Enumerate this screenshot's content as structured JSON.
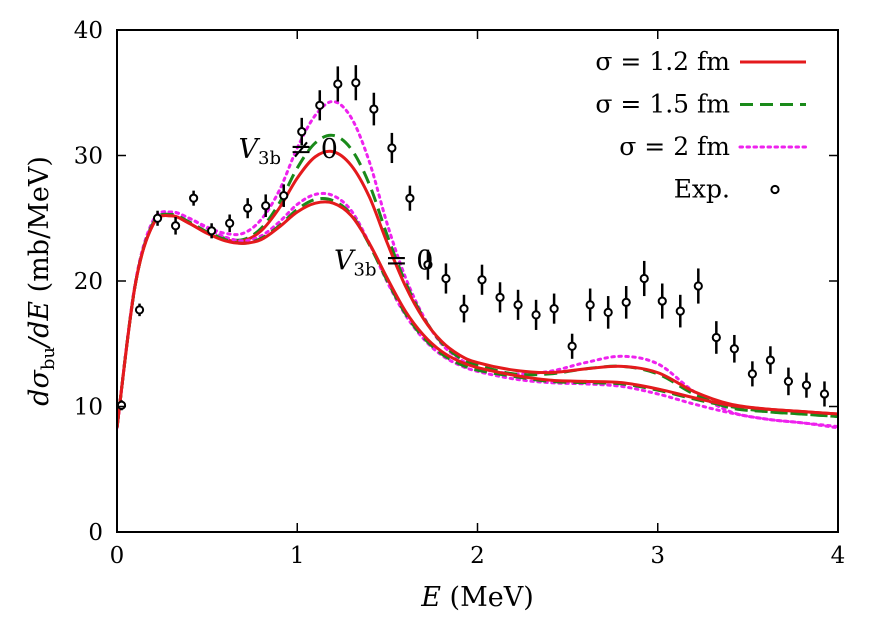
{
  "chart_data": {
    "type": "line",
    "xlabel": "E (MeV)",
    "ylabel": "dσbu/dE (mb/MeV)",
    "xlim": [
      0,
      4
    ],
    "ylim": [
      0,
      40
    ],
    "xticks": [
      "0",
      "1",
      "2",
      "3",
      "4"
    ],
    "yticks": [
      "0",
      "10",
      "20",
      "30",
      "40"
    ],
    "grid": false,
    "legend_position": "top-right",
    "legend": [
      {
        "label": "σ = 1.2 fm",
        "color": "#e41a1c",
        "style": "solid"
      },
      {
        "label": "σ = 1.5 fm",
        "color": "#1a8a1a",
        "style": "dashed"
      },
      {
        "label": "σ = 2 fm",
        "color": "#ee22ee",
        "style": "dotted"
      },
      {
        "label": "Exp.",
        "color": "#000000",
        "style": "points"
      }
    ],
    "annotations": [
      {
        "text": "V3b ≠ 0",
        "main": "V",
        "sub": "3b",
        "rel": " ≠ 0",
        "at": [
          0.95,
          29.8
        ]
      },
      {
        "text": "V3b = 0",
        "main": "V",
        "sub": "3b",
        "rel": " = 0",
        "at": [
          1.48,
          20.9
        ]
      }
    ],
    "x": [
      0.0,
      0.1,
      0.2,
      0.3,
      0.4,
      0.5,
      0.6,
      0.7,
      0.8,
      0.9,
      1.0,
      1.1,
      1.2,
      1.3,
      1.4,
      1.5,
      1.6,
      1.7,
      1.8,
      1.9,
      2.0,
      2.2,
      2.4,
      2.6,
      2.8,
      3.0,
      3.2,
      3.4,
      3.6,
      3.8,
      4.0
    ],
    "series": [
      {
        "name": "σ = 1.2 fm",
        "group": "V3b ≠ 0",
        "color": "#e41a1c",
        "style": "solid",
        "values": [
          8.3,
          19.6,
          24.5,
          25.2,
          24.6,
          23.8,
          23.3,
          23.2,
          24.0,
          25.8,
          28.2,
          29.9,
          30.3,
          29.2,
          26.7,
          23.0,
          19.6,
          17.0,
          15.2,
          14.1,
          13.5,
          12.9,
          12.7,
          13.0,
          13.2,
          12.7,
          11.2,
          10.2,
          9.8,
          9.6,
          9.4
        ]
      },
      {
        "name": "σ = 1.5 fm",
        "group": "V3b ≠ 0",
        "color": "#1a8a1a",
        "style": "dashed",
        "values": [
          8.3,
          19.6,
          24.6,
          25.3,
          24.7,
          23.9,
          23.4,
          23.3,
          24.2,
          26.2,
          29.0,
          31.0,
          31.6,
          30.5,
          27.7,
          23.6,
          19.9,
          17.1,
          15.1,
          13.9,
          13.3,
          12.6,
          12.6,
          13.0,
          13.2,
          12.6,
          11.0,
          9.9,
          9.6,
          9.4,
          9.2
        ]
      },
      {
        "name": "σ = 2 fm",
        "group": "V3b ≠ 0",
        "color": "#ee22ee",
        "style": "dotted",
        "values": [
          8.3,
          19.7,
          24.8,
          25.5,
          25.0,
          24.3,
          23.8,
          23.8,
          24.9,
          27.2,
          30.6,
          33.2,
          34.3,
          33.0,
          29.5,
          24.5,
          20.3,
          17.2,
          15.0,
          13.8,
          13.1,
          12.6,
          12.8,
          13.5,
          14.0,
          13.4,
          11.2,
          9.6,
          9.0,
          8.7,
          8.3
        ]
      },
      {
        "name": "σ = 1.2 fm",
        "group": "V3b = 0",
        "color": "#e41a1c",
        "style": "solid",
        "values": [
          8.3,
          19.6,
          24.5,
          25.2,
          24.6,
          23.8,
          23.2,
          23.0,
          23.3,
          24.3,
          25.5,
          26.2,
          26.2,
          25.2,
          23.0,
          20.2,
          17.6,
          15.7,
          14.4,
          13.6,
          13.1,
          12.5,
          12.1,
          12.0,
          11.9,
          11.4,
          10.7,
          10.1,
          9.8,
          9.6,
          9.4
        ]
      },
      {
        "name": "σ = 1.5 fm",
        "group": "V3b = 0",
        "color": "#1a8a1a",
        "style": "dashed",
        "values": [
          8.3,
          19.6,
          24.6,
          25.3,
          24.7,
          23.9,
          23.3,
          23.0,
          23.4,
          24.4,
          25.7,
          26.5,
          26.4,
          25.3,
          22.9,
          20.0,
          17.4,
          15.5,
          14.2,
          13.4,
          12.9,
          12.4,
          12.0,
          11.9,
          11.8,
          11.3,
          10.6,
          10.0,
          9.6,
          9.4,
          9.2
        ]
      },
      {
        "name": "σ = 2 fm",
        "group": "V3b = 0",
        "color": "#ee22ee",
        "style": "dotted",
        "values": [
          8.3,
          19.7,
          24.8,
          25.5,
          25.0,
          24.2,
          23.5,
          23.2,
          23.6,
          24.7,
          26.1,
          26.9,
          26.8,
          25.6,
          23.0,
          19.9,
          17.3,
          15.4,
          14.1,
          13.3,
          12.8,
          12.2,
          11.9,
          11.8,
          11.6,
          11.0,
          10.2,
          9.5,
          9.0,
          8.7,
          8.4
        ]
      }
    ],
    "experimental": {
      "name": "Exp.",
      "x": [
        0.025,
        0.125,
        0.225,
        0.325,
        0.425,
        0.525,
        0.625,
        0.725,
        0.825,
        0.925,
        1.025,
        1.125,
        1.225,
        1.325,
        1.425,
        1.525,
        1.625,
        1.725,
        1.825,
        1.925,
        2.025,
        2.125,
        2.225,
        2.325,
        2.425,
        2.525,
        2.625,
        2.725,
        2.825,
        2.925,
        3.025,
        3.125,
        3.225,
        3.325,
        3.425,
        3.525,
        3.625,
        3.725,
        3.825,
        3.925
      ],
      "y": [
        10.1,
        17.7,
        25.0,
        24.4,
        26.6,
        24.0,
        24.6,
        25.8,
        26.0,
        26.8,
        31.9,
        34.0,
        35.7,
        35.8,
        33.7,
        30.6,
        26.6,
        21.3,
        20.2,
        17.8,
        20.1,
        18.7,
        18.1,
        17.3,
        17.8,
        14.8,
        18.1,
        17.5,
        18.3,
        20.2,
        18.4,
        17.6,
        19.6,
        15.5,
        14.6,
        12.6,
        13.7,
        12.0,
        11.7,
        11.0
      ],
      "err": [
        0.4,
        0.5,
        0.6,
        0.7,
        0.6,
        0.6,
        0.7,
        0.8,
        0.9,
        0.9,
        1.1,
        1.2,
        1.4,
        1.4,
        1.3,
        1.2,
        1.0,
        1.2,
        1.2,
        1.1,
        1.2,
        1.2,
        1.2,
        1.2,
        1.2,
        1.0,
        1.3,
        1.3,
        1.3,
        1.4,
        1.4,
        1.3,
        1.4,
        1.3,
        1.1,
        1.0,
        1.1,
        1.1,
        1.0,
        1.0
      ]
    }
  }
}
